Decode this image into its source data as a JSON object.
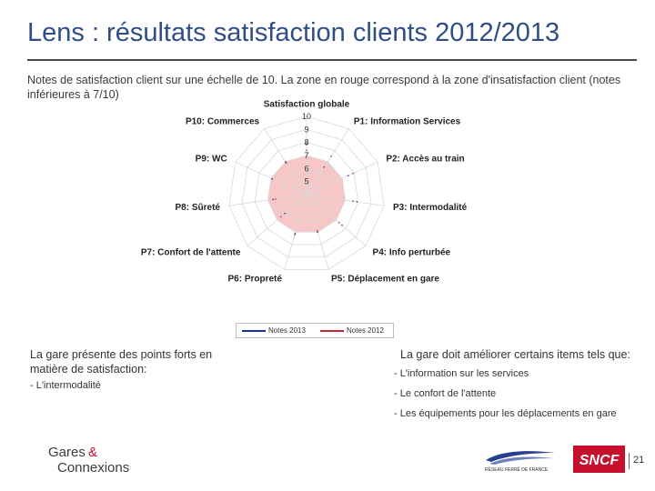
{
  "slide": {
    "title": "Lens : résultats satisfaction clients 2012/2013",
    "subtitle": "Notes de satisfaction client sur une échelle de 10. La zone en rouge correspond à la zone d'insatisfaction client (notes inférieures à 7/10)",
    "page_number": "21"
  },
  "left_column": {
    "heading": "La gare présente des points forts en matière de satisfaction:",
    "items": [
      "- L'intermodalité"
    ]
  },
  "right_column": {
    "heading": "La gare doit améliorer certains items tels que:",
    "items": [
      "- L'information sur les services",
      "- Le confort de l'attente",
      "- Les équipements pour les déplacements en gare"
    ]
  },
  "logos": {
    "gares_connexions_line1": "Gares",
    "gares_connexions_amp": "&",
    "gares_connexions_line2": "Connexions",
    "rff": "RÉSEAU FERRÉ DE FRANCE",
    "sncf": "SNCF"
  },
  "colors": {
    "title": "#2f4e86",
    "series_2013": "#1f2fa8",
    "series_2012": "#c0272d",
    "dissatisfaction_zone": "#f4b4b4",
    "sncf_red": "#c8102e"
  },
  "chart_data": {
    "type": "radar",
    "axes": [
      "Satisfaction globale",
      "P1: Information Services",
      "P2: Accès au train",
      "P3: Intermodalité",
      "P4: Info perturbée",
      "P5: Déplacement en gare",
      "P6: Propreté",
      "P7: Confort de l'attente",
      "P8: Sûreté",
      "P9: WC",
      "P10: Commerces"
    ],
    "scale_min": 4,
    "scale_max": 10,
    "ticks": [
      5,
      6,
      7,
      8,
      9,
      10
    ],
    "dissatisfaction_threshold": 7,
    "series": [
      {
        "name": "Notes 2013",
        "values": [
          7.9,
          6.5,
          7.5,
          7.9,
          7.6,
          7.0,
          7.2,
          6.2,
          6.6,
          6.9,
          6.9
        ]
      },
      {
        "name": "Notes 2012",
        "values": [
          7.4,
          7.5,
          7.9,
          7.6,
          7.3,
          6.9,
          7.1,
          6.6,
          6.4,
          6.9,
          7.0
        ]
      }
    ]
  }
}
